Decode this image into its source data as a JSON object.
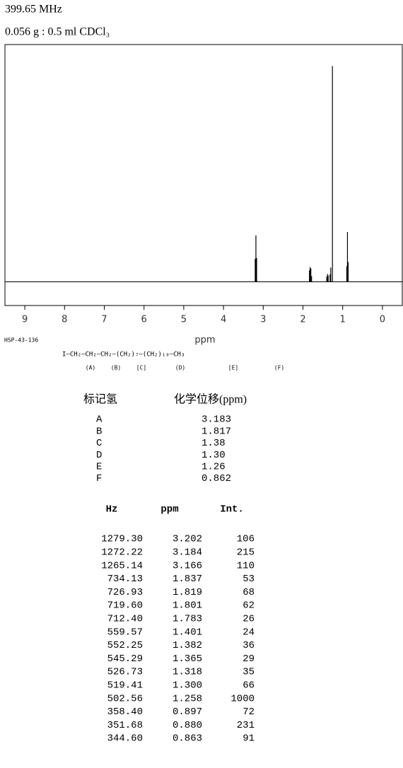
{
  "header": {
    "frequency": "399.65 MHz",
    "sample": "0.056 g : 0.5 ml CDCl₃"
  },
  "chart_data": {
    "type": "stick",
    "xlabel": "ppm",
    "x": [
      3.202,
      3.184,
      3.166,
      1.837,
      1.819,
      1.801,
      1.783,
      1.401,
      1.382,
      1.365,
      1.318,
      1.3,
      1.258,
      0.897,
      0.88,
      0.863
    ],
    "values": [
      106,
      215,
      110,
      53,
      68,
      62,
      26,
      24,
      36,
      29,
      35,
      66,
      1000,
      72,
      231,
      91
    ],
    "color": "#000000",
    "xlim": [
      9.5,
      -0.5
    ],
    "xticks": [
      9,
      8,
      7,
      6,
      5,
      4,
      3,
      2,
      1,
      0
    ],
    "ylim": [
      -110,
      1100
    ]
  },
  "structure": {
    "code": "HSP-43-136",
    "formula": "I—CH₂—CH₂—CH₂—(CH₂)₇—(CH₂)₁₀—CH₃",
    "labels": [
      "(A)",
      "(B)",
      "[C]",
      "(D)",
      "[E]",
      "(F)"
    ]
  },
  "assignment": {
    "headers": [
      "标记氢",
      "化学位移(ppm)"
    ],
    "rows": [
      [
        "A",
        "3.183"
      ],
      [
        "B",
        "1.817"
      ],
      [
        "C",
        "1.38"
      ],
      [
        "D",
        "1.30"
      ],
      [
        "E",
        "1.26"
      ],
      [
        "F",
        "0.862"
      ]
    ]
  },
  "peaks": {
    "headers": [
      "Hz",
      "ppm",
      "Int."
    ],
    "rows": [
      [
        "1279.30",
        "3.202",
        "106"
      ],
      [
        "1272.22",
        "3.184",
        "215"
      ],
      [
        "1265.14",
        "3.166",
        "110"
      ],
      [
        "734.13",
        "1.837",
        "53"
      ],
      [
        "726.93",
        "1.819",
        "68"
      ],
      [
        "719.60",
        "1.801",
        "62"
      ],
      [
        "712.40",
        "1.783",
        "26"
      ],
      [
        "559.57",
        "1.401",
        "24"
      ],
      [
        "552.25",
        "1.382",
        "36"
      ],
      [
        "545.29",
        "1.365",
        "29"
      ],
      [
        "526.73",
        "1.318",
        "35"
      ],
      [
        "519.41",
        "1.300",
        "66"
      ],
      [
        "502.56",
        "1.258",
        "1000"
      ],
      [
        "358.40",
        "0.897",
        "72"
      ],
      [
        "351.68",
        "0.880",
        "231"
      ],
      [
        "344.60",
        "0.863",
        "91"
      ]
    ]
  }
}
